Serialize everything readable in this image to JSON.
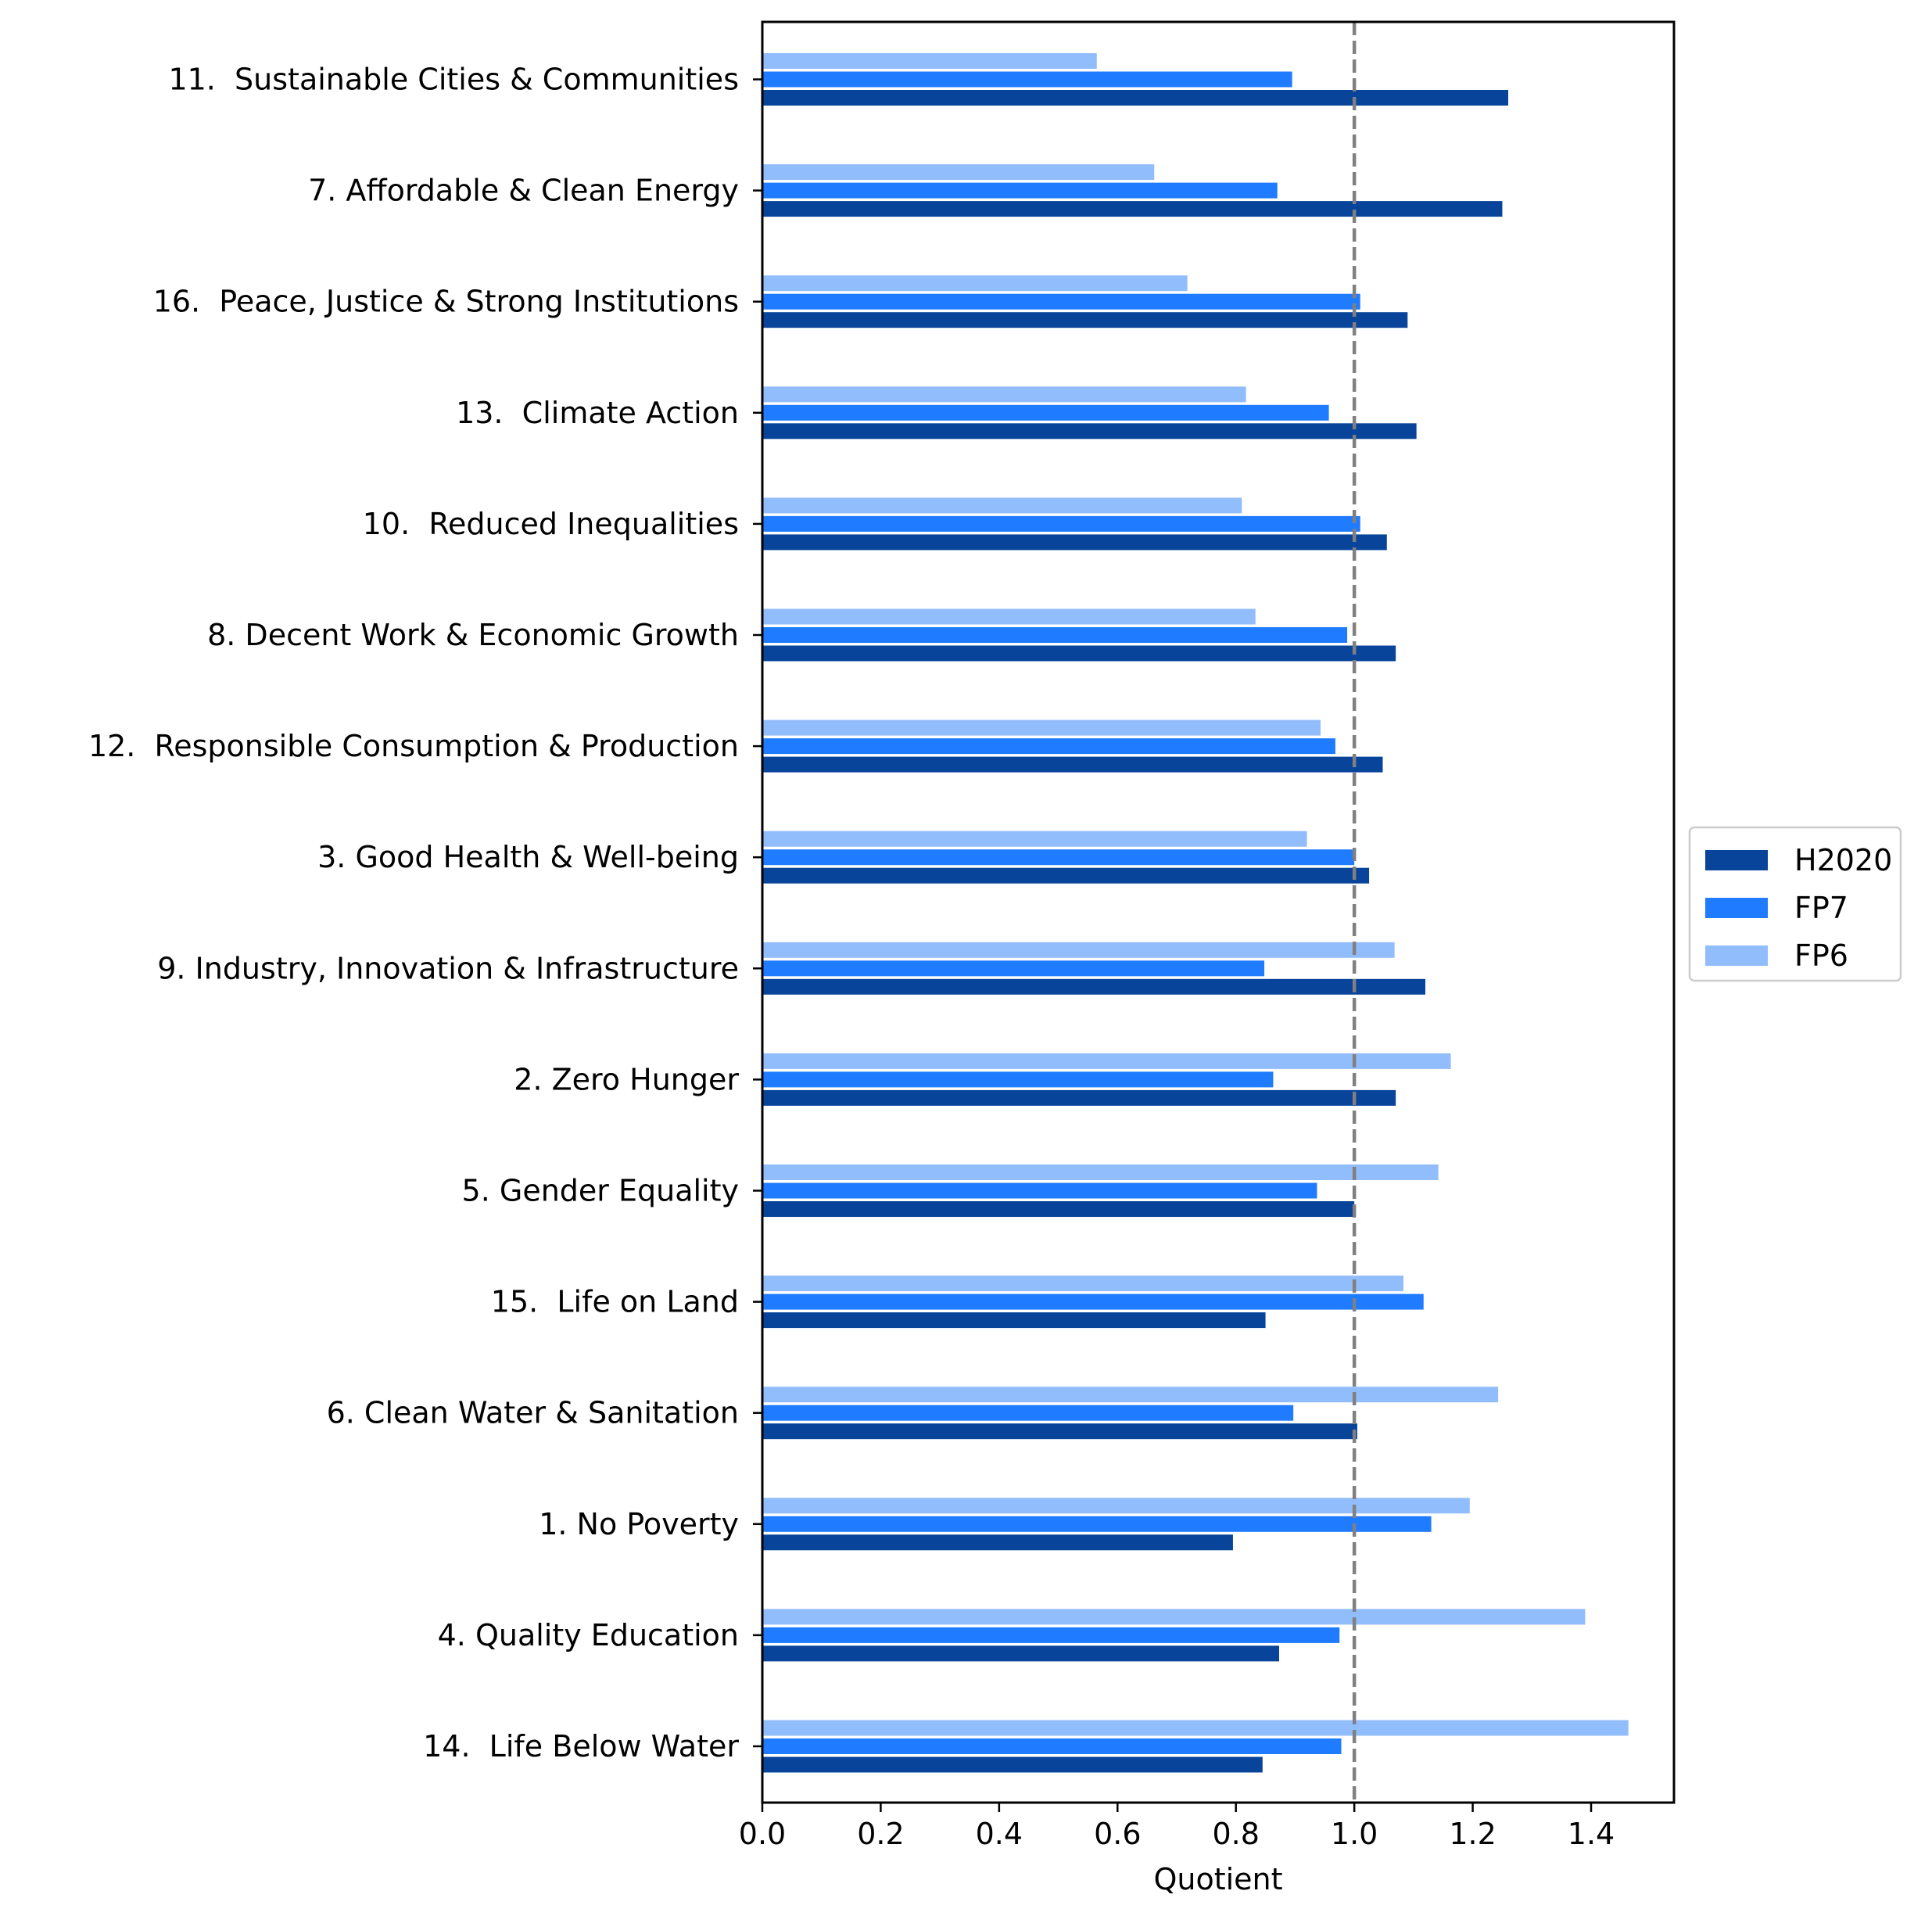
{
  "chart_data": {
    "type": "bar",
    "orientation": "horizontal",
    "title": "",
    "xlabel": "Quotient",
    "ylabel": "",
    "xlim": [
      0,
      1.54
    ],
    "x_ticks": [
      "0.0",
      "0.2",
      "0.4",
      "0.6",
      "0.8",
      "1.0",
      "1.2",
      "1.4"
    ],
    "reference_line": {
      "x": 1.0,
      "style": "dashed",
      "color": "#808080"
    },
    "grid": false,
    "legend_placement": "center-right outside",
    "categories": [
      "11.  Sustainable Cities & Communities",
      "7. Affordable & Clean Energy",
      "16.  Peace, Justice & Strong Institutions",
      "13.  Climate Action",
      "10.  Reduced Inequalities",
      "8. Decent Work & Economic Growth",
      "12.  Responsible Consumption & Production",
      "3. Good Health & Well-being",
      "9. Industry, Innovation & Infrastructure",
      "2. Zero Hunger",
      "5. Gender Equality",
      "15.  Life on Land",
      "6. Clean Water & Sanitation",
      "1. No Poverty",
      "4. Quality Education",
      "14.  Life Below Water"
    ],
    "series": [
      {
        "name": "H2020",
        "color": "#08449a",
        "values": [
          1.26,
          1.25,
          1.09,
          1.105,
          1.055,
          1.07,
          1.048,
          1.025,
          1.12,
          1.07,
          1.0,
          0.85,
          1.005,
          0.795,
          0.873,
          0.845
        ]
      },
      {
        "name": "FP7",
        "color": "#1f7bff",
        "values": [
          0.895,
          0.87,
          1.01,
          0.957,
          1.01,
          0.988,
          0.968,
          1.0,
          0.848,
          0.863,
          0.937,
          1.117,
          0.897,
          1.13,
          0.975,
          0.978
        ]
      },
      {
        "name": "FP6",
        "color": "#92bdfc",
        "values": [
          0.565,
          0.662,
          0.718,
          0.817,
          0.81,
          0.833,
          0.943,
          0.92,
          1.068,
          1.163,
          1.142,
          1.083,
          1.243,
          1.195,
          1.39,
          1.463
        ]
      }
    ]
  }
}
